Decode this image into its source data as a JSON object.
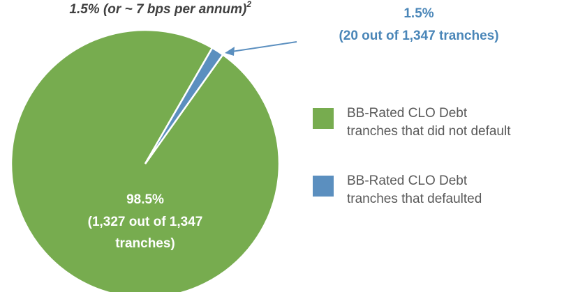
{
  "chart_data": {
    "type": "pie",
    "title": "1.5% (or ~ 7 bps per annum)",
    "title_superscript": "2",
    "categories": [
      [
        "BB-Rated CLO Debt",
        "tranches that did not default"
      ],
      [
        "BB-Rated CLO Debt",
        "tranches that defaulted"
      ]
    ],
    "values": [
      98.5,
      1.5
    ],
    "value_labels": [
      "98.5%",
      "1.5%"
    ],
    "detail_labels": [
      [
        "(1,327 out of 1,347",
        "tranches)"
      ],
      [
        "(20 out of 1,347 tranches)"
      ]
    ],
    "colors": [
      "#77ac4f",
      "#5b8fbf"
    ],
    "legend": "right"
  }
}
